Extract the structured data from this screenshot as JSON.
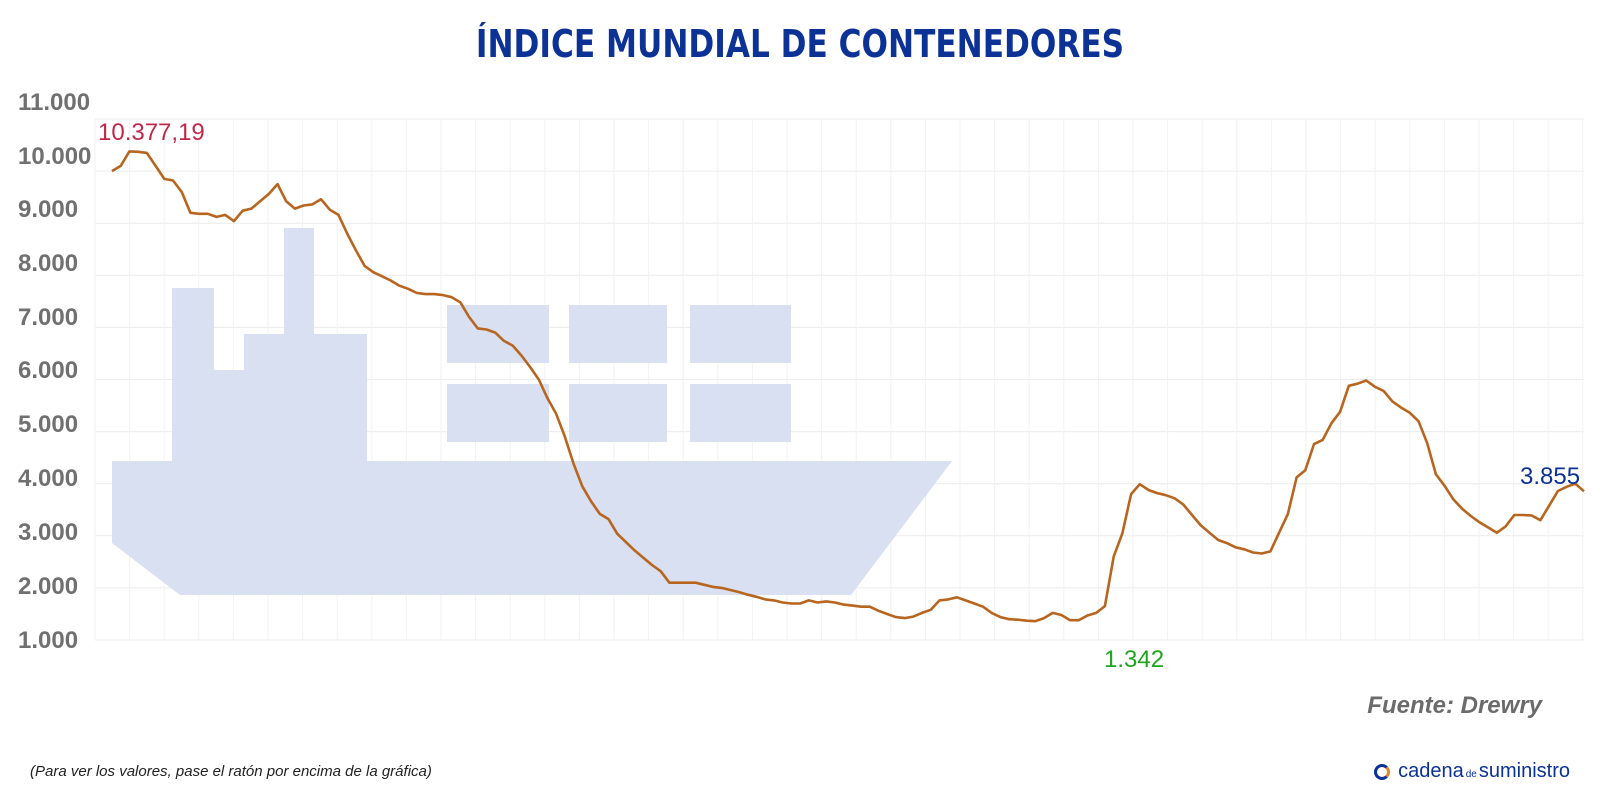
{
  "header": {
    "title": "ÍNDICE MUNDIAL DE CONTENEDORES"
  },
  "footer": {
    "source": "Fuente: Drewry",
    "note": "(Para ver los valores, pase el ratón por encima de la gráfica)",
    "brand_main": "cadena",
    "brand_small": "de",
    "brand_end": "suministro"
  },
  "colors": {
    "title": "#0c3296",
    "line": "#b7651f",
    "ship": "#d8e0f2",
    "max_label": "#c0284a",
    "min_label": "#1fa51f",
    "last_label": "#0c3296"
  },
  "chart_data": {
    "type": "line",
    "title": "ÍNDICE MUNDIAL DE CONTENEDORES",
    "ylim": [
      1000,
      11000
    ],
    "yticks": [
      1000,
      2000,
      3000,
      4000,
      5000,
      6000,
      7000,
      8000,
      9000,
      10000,
      11000
    ],
    "ytick_labels": [
      "1.000",
      "2.000",
      "3.000",
      "4.000",
      "5.000",
      "6.000",
      "7.000",
      "8.000",
      "9.000",
      "10.000",
      "11.000"
    ],
    "grid": true,
    "legend": "none",
    "series": [
      {
        "values": [
          10000,
          10100,
          10377.19,
          10370,
          10350,
          10100,
          9850,
          9820,
          9600,
          9200,
          9180,
          9180,
          9120,
          9160,
          9040,
          9240,
          9280,
          9420,
          9560,
          9750,
          9420,
          9280,
          9340,
          9360,
          9460,
          9260,
          9160,
          8800,
          8480,
          8180,
          8060,
          7980,
          7900,
          7800,
          7740,
          7660,
          7640,
          7640,
          7620,
          7580,
          7480,
          7200,
          6980,
          6960,
          6900,
          6740,
          6650,
          6460,
          6240,
          6000,
          5640,
          5340,
          4900,
          4380,
          3950,
          3660,
          3420,
          3320,
          3040,
          2880,
          2720,
          2580,
          2440,
          2320,
          2100,
          2100,
          2100,
          2100,
          2060,
          2020,
          2000,
          1960,
          1920,
          1870,
          1830,
          1780,
          1760,
          1720,
          1700,
          1700,
          1760,
          1720,
          1740,
          1720,
          1680,
          1660,
          1640,
          1640,
          1560,
          1500,
          1440,
          1420,
          1450,
          1520,
          1580,
          1760,
          1780,
          1820,
          1760,
          1700,
          1640,
          1520,
          1440,
          1400,
          1390,
          1370,
          1360,
          1420,
          1520,
          1480,
          1380,
          1380,
          1470,
          1520,
          1650,
          2600,
          3050,
          3800,
          3990,
          3880,
          3820,
          3780,
          3720,
          3600,
          3400,
          3200,
          3060,
          2920,
          2860,
          2780,
          2740,
          2680,
          2660,
          2700,
          3060,
          3420,
          4120,
          4260,
          4760,
          4840,
          5160,
          5380,
          5880,
          5920,
          5980,
          5860,
          5780,
          5580,
          5460,
          5360,
          5200,
          4780,
          4180,
          3960,
          3700,
          3520,
          3380,
          3260,
          3160,
          3060,
          3180,
          3400,
          3400,
          3390,
          3300,
          3580,
          3860,
          3940,
          4000,
          3855
        ]
      }
    ],
    "annotations": {
      "max": {
        "label": "10.377,19",
        "index": 2
      },
      "min": {
        "label": "1.342",
        "index": 108
      },
      "last": {
        "label": "3.855",
        "index": 172
      }
    }
  }
}
